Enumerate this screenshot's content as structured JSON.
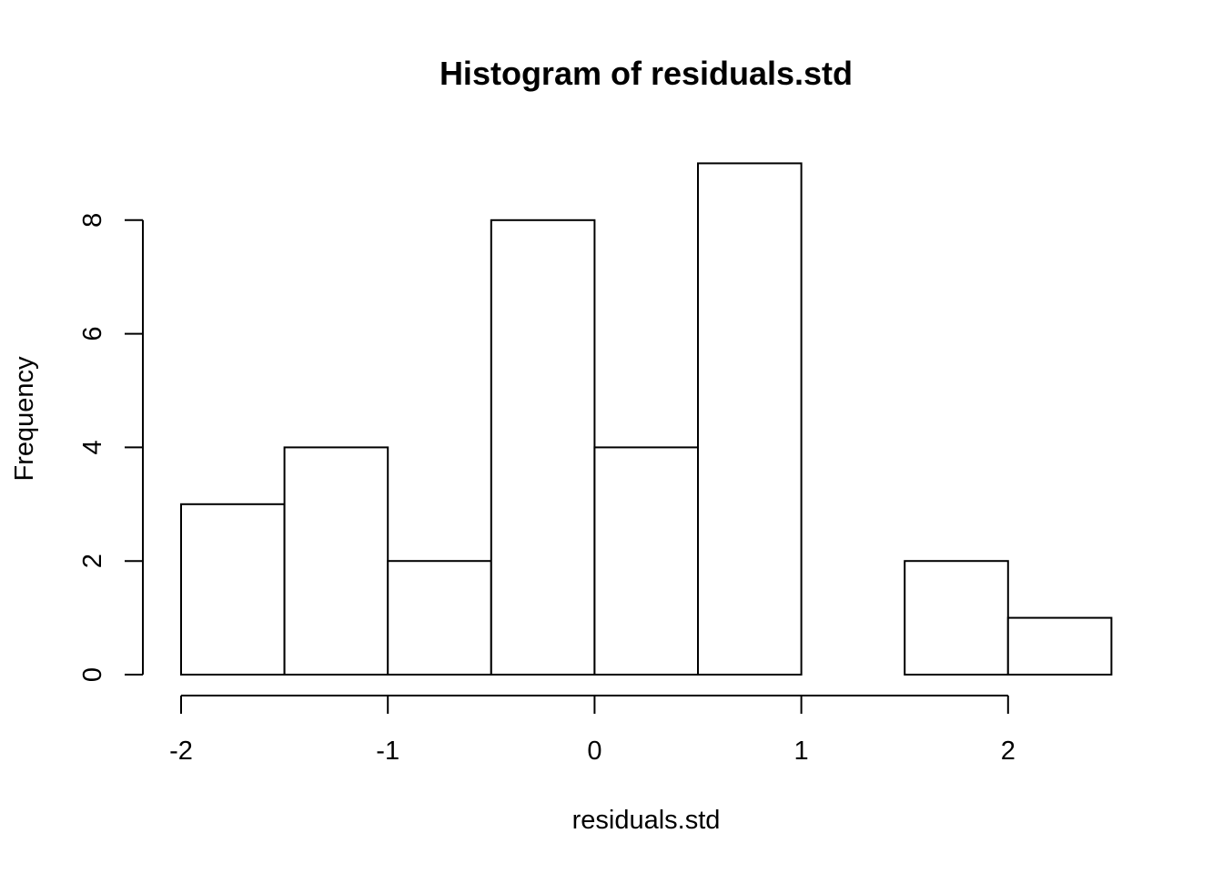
{
  "chart_data": {
    "type": "bar",
    "title": "Histogram of residuals.std",
    "xlabel": "residuals.std",
    "ylabel": "Frequency",
    "bins": [
      {
        "from": -2.0,
        "to": -1.5,
        "count": 3
      },
      {
        "from": -1.5,
        "to": -1.0,
        "count": 4
      },
      {
        "from": -1.0,
        "to": -0.5,
        "count": 2
      },
      {
        "from": -0.5,
        "to": 0.0,
        "count": 8
      },
      {
        "from": 0.0,
        "to": 0.5,
        "count": 4
      },
      {
        "from": 0.5,
        "to": 1.0,
        "count": 9
      },
      {
        "from": 1.0,
        "to": 1.5,
        "count": 0
      },
      {
        "from": 1.5,
        "to": 2.0,
        "count": 2
      },
      {
        "from": 2.0,
        "to": 2.5,
        "count": 1
      }
    ],
    "x_ticks": [
      {
        "value": -2,
        "label": "-2"
      },
      {
        "value": -1,
        "label": "-1"
      },
      {
        "value": 0,
        "label": "0"
      },
      {
        "value": 1,
        "label": "1"
      },
      {
        "value": 2,
        "label": "2"
      }
    ],
    "y_ticks": [
      {
        "value": 0,
        "label": "0"
      },
      {
        "value": 2,
        "label": "2"
      },
      {
        "value": 4,
        "label": "4"
      },
      {
        "value": 6,
        "label": "6"
      },
      {
        "value": 8,
        "label": "8"
      }
    ],
    "xlim": [
      -2.0,
      2.5
    ],
    "ylim": [
      0,
      9
    ],
    "grid": false,
    "legend": "none",
    "bar_fill": "#ffffff",
    "bar_stroke": "#000000"
  }
}
